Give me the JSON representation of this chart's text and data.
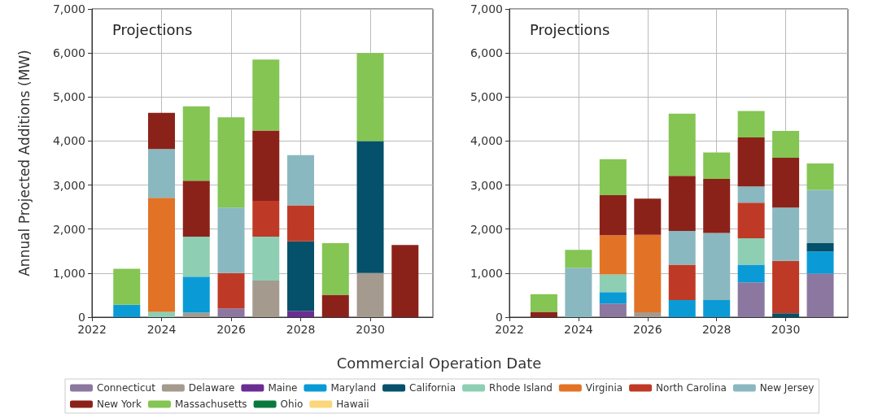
{
  "chart_data": [
    {
      "type": "bar",
      "title": "Projections",
      "xlabel": "Commercial Operation Date",
      "ylabel": "Annual Projected Additions (MW)",
      "stacked": true,
      "grid": true,
      "legend": "bottom",
      "x": [
        2023,
        2024,
        2025,
        2026,
        2027,
        2028,
        2029,
        2030,
        2031
      ],
      "xlim": [
        2022,
        2031.8
      ],
      "xticks": [
        2022,
        2024,
        2026,
        2028,
        2030
      ],
      "ylim": [
        0,
        7000
      ],
      "yticks": [
        0,
        {
          "value": 1000,
          "label": "1,000"
        },
        {
          "value": 2000,
          "label": "2,000"
        },
        {
          "value": 3000,
          "label": "3,000"
        },
        {
          "value": 4000,
          "label": "4,000"
        },
        {
          "value": 5000,
          "label": "5,000"
        },
        {
          "value": 6000,
          "label": "6,000"
        },
        {
          "value": 7000,
          "label": "7,000"
        }
      ],
      "series": [
        {
          "name": "Connecticut",
          "color": "#8c77a0",
          "values": [
            null,
            null,
            null,
            200,
            null,
            null,
            null,
            null,
            null
          ]
        },
        {
          "name": "Delaware",
          "color": "#a59a8e",
          "values": [
            null,
            null,
            100,
            null,
            830,
            null,
            null,
            1000,
            null
          ]
        },
        {
          "name": "Maine",
          "color": "#6a2d91",
          "values": [
            null,
            null,
            null,
            null,
            null,
            140,
            null,
            null,
            null
          ]
        },
        {
          "name": "Maryland",
          "color": "#0a9bd6",
          "values": [
            280,
            null,
            820,
            null,
            null,
            null,
            null,
            null,
            null
          ]
        },
        {
          "name": "California",
          "color": "#05506a",
          "values": [
            null,
            null,
            null,
            null,
            null,
            1580,
            null,
            3000,
            null
          ]
        },
        {
          "name": "Rhode Island",
          "color": "#8ecfb4",
          "values": [
            null,
            120,
            910,
            null,
            1000,
            null,
            null,
            null,
            null
          ]
        },
        {
          "name": "Virginia",
          "color": "#e27326",
          "values": [
            null,
            2590,
            null,
            null,
            null,
            null,
            null,
            null,
            null
          ]
        },
        {
          "name": "North Carolina",
          "color": "#bf3a26",
          "values": [
            null,
            null,
            null,
            800,
            810,
            820,
            null,
            null,
            null
          ]
        },
        {
          "name": "New Jersey",
          "color": "#8ab8c0",
          "values": [
            null,
            1110,
            null,
            1490,
            null,
            1140,
            null,
            null,
            null
          ]
        },
        {
          "name": "New York",
          "color": "#8b2219",
          "values": [
            null,
            820,
            1270,
            null,
            1600,
            null,
            510,
            null,
            1640
          ]
        },
        {
          "name": "Massachusetts",
          "color": "#84c553",
          "values": [
            820,
            null,
            1690,
            2050,
            1610,
            null,
            1170,
            2000,
            null
          ]
        },
        {
          "name": "Ohio",
          "color": "#0a7a3c",
          "values": [
            null,
            null,
            null,
            null,
            null,
            null,
            null,
            null,
            null
          ]
        },
        {
          "name": "Hawaii",
          "color": "#f9d77a",
          "values": [
            null,
            null,
            null,
            null,
            null,
            null,
            null,
            null,
            null
          ]
        }
      ]
    },
    {
      "type": "bar",
      "title": "Projections",
      "stacked": true,
      "grid": true,
      "x": [
        2023,
        2024,
        2025,
        2026,
        2027,
        2028,
        2029,
        2030,
        2031
      ],
      "xlim": [
        2022,
        2031.8
      ],
      "xticks": [
        2022,
        2024,
        2026,
        2028,
        2030
      ],
      "ylim": [
        0,
        7000
      ],
      "yticks": [
        0,
        {
          "value": 1000,
          "label": "1,000"
        },
        {
          "value": 2000,
          "label": "2,000"
        },
        {
          "value": 3000,
          "label": "3,000"
        },
        {
          "value": 4000,
          "label": "4,000"
        },
        {
          "value": 5000,
          "label": "5,000"
        },
        {
          "value": 6000,
          "label": "6,000"
        },
        {
          "value": 7000,
          "label": "7,000"
        }
      ],
      "series": [
        {
          "color": "#8c77a0",
          "values": [
            null,
            null,
            310,
            null,
            null,
            null,
            790,
            null,
            990
          ]
        },
        {
          "color": "#a59a8e",
          "values": [
            null,
            null,
            null,
            110,
            null,
            null,
            null,
            null,
            null
          ]
        },
        {
          "color": "#0a9bd6",
          "values": [
            null,
            null,
            260,
            null,
            390,
            390,
            400,
            null,
            500
          ]
        },
        {
          "color": "#05506a",
          "values": [
            null,
            null,
            null,
            null,
            null,
            null,
            null,
            90,
            190
          ]
        },
        {
          "color": "#8ecfb4",
          "values": [
            null,
            null,
            400,
            null,
            null,
            null,
            600,
            null,
            null
          ]
        },
        {
          "color": "#e27326",
          "values": [
            null,
            null,
            890,
            1760,
            null,
            null,
            null,
            null,
            null
          ]
        },
        {
          "color": "#bf3a26",
          "values": [
            null,
            null,
            null,
            null,
            800,
            null,
            810,
            1190,
            null
          ]
        },
        {
          "color": "#8ab8c0",
          "values": [
            null,
            1120,
            null,
            null,
            770,
            1520,
            370,
            1210,
            1210
          ]
        },
        {
          "color": "#8b2219",
          "values": [
            120,
            null,
            910,
            820,
            1250,
            1230,
            1110,
            1130,
            null
          ]
        },
        {
          "color": "#84c553",
          "values": [
            400,
            410,
            820,
            null,
            1410,
            600,
            600,
            610,
            600
          ]
        }
      ]
    }
  ]
}
